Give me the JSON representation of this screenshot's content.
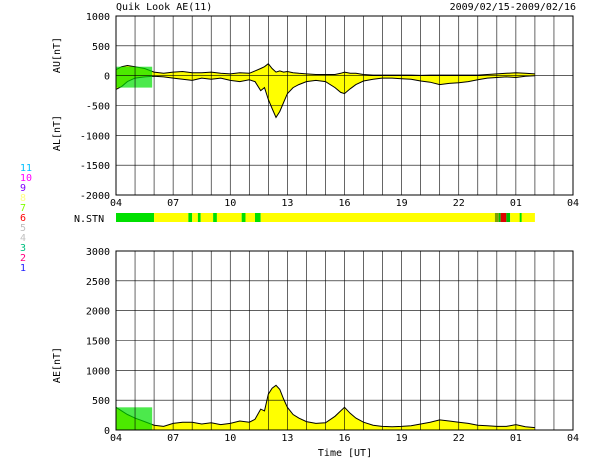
{
  "title": "Quik Look AE(11)",
  "date_range": "2009/02/15-2009/02/16",
  "xlabel": "Time [UT]",
  "x_ticks": [
    "04",
    "07",
    "10",
    "13",
    "16",
    "19",
    "22",
    "01",
    "04"
  ],
  "nstn_label": "N.STN",
  "legend": [
    {
      "label": "11",
      "color": "#00c0ff"
    },
    {
      "label": "10",
      "color": "#ff00ff"
    },
    {
      "label": "9",
      "color": "#8000ff"
    },
    {
      "label": "8",
      "color": "#ffff80"
    },
    {
      "label": "7",
      "color": "#80ff00"
    },
    {
      "label": "6",
      "color": "#ff0000"
    },
    {
      "label": "5",
      "color": "#c0c0c0"
    },
    {
      "label": "4",
      "color": "#c0c0c0"
    },
    {
      "label": "3",
      "color": "#00c080"
    },
    {
      "label": "2",
      "color": "#ff0080"
    },
    {
      "label": "1",
      "color": "#2020ff"
    }
  ],
  "chart_data": [
    {
      "type": "area",
      "name": "AU/AL",
      "ylabel_upper": "AU[nT]",
      "ylabel_lower": "AL[nT]",
      "y_ticks": [
        1000,
        500,
        0,
        -500,
        -1000,
        -1500,
        -2000
      ],
      "ylim": [
        -2000,
        1000
      ],
      "xlim_hours": [
        4,
        28
      ],
      "grid": true,
      "au": {
        "t": [
          4.0,
          4.3,
          4.6,
          5.0,
          5.5,
          6.0,
          6.5,
          7.0,
          7.5,
          8.0,
          8.5,
          9.0,
          9.5,
          10.0,
          10.5,
          11.0,
          11.3,
          11.6,
          11.8,
          12.0,
          12.2,
          12.4,
          12.6,
          12.8,
          13.0,
          13.3,
          13.6,
          14.0,
          14.5,
          15.0,
          15.5,
          15.8,
          16.0,
          16.3,
          16.6,
          17.0,
          17.5,
          18.0,
          18.5,
          19.0,
          19.5,
          20.0,
          20.5,
          21.0,
          21.5,
          22.0,
          22.5,
          23.0,
          23.5,
          24.0,
          24.5,
          25.0,
          25.5,
          26.0
        ],
        "v": [
          100,
          150,
          170,
          150,
          120,
          60,
          40,
          60,
          70,
          50,
          50,
          60,
          40,
          30,
          50,
          40,
          80,
          120,
          150,
          200,
          120,
          60,
          80,
          60,
          70,
          50,
          40,
          30,
          20,
          20,
          20,
          40,
          60,
          40,
          40,
          20,
          10,
          10,
          10,
          10,
          10,
          5,
          10,
          10,
          10,
          10,
          10,
          10,
          20,
          30,
          40,
          50,
          40,
          30
        ]
      },
      "al": {
        "t": [
          4.0,
          4.3,
          4.6,
          5.0,
          5.5,
          6.0,
          6.5,
          7.0,
          7.5,
          8.0,
          8.5,
          9.0,
          9.5,
          10.0,
          10.5,
          11.0,
          11.3,
          11.6,
          11.8,
          12.0,
          12.2,
          12.4,
          12.6,
          12.8,
          13.0,
          13.3,
          13.6,
          14.0,
          14.5,
          15.0,
          15.5,
          15.8,
          16.0,
          16.3,
          16.6,
          17.0,
          17.5,
          18.0,
          18.5,
          19.0,
          19.5,
          20.0,
          20.5,
          21.0,
          21.5,
          22.0,
          22.5,
          23.0,
          23.5,
          24.0,
          24.5,
          25.0,
          25.5,
          26.0
        ],
        "v": [
          -230,
          -180,
          -100,
          -40,
          -20,
          -10,
          -20,
          -40,
          -60,
          -80,
          -40,
          -60,
          -40,
          -80,
          -100,
          -70,
          -100,
          -250,
          -200,
          -400,
          -550,
          -700,
          -600,
          -450,
          -300,
          -200,
          -150,
          -100,
          -80,
          -100,
          -200,
          -280,
          -300,
          -220,
          -150,
          -90,
          -60,
          -40,
          -40,
          -50,
          -60,
          -90,
          -110,
          -150,
          -130,
          -120,
          -100,
          -70,
          -40,
          -30,
          -20,
          -30,
          -10,
          0
        ]
      }
    },
    {
      "type": "area",
      "name": "AE",
      "ylabel": "AE[nT]",
      "y_ticks": [
        3000,
        2500,
        2000,
        1500,
        1000,
        500,
        0
      ],
      "ylim": [
        0,
        3000
      ],
      "xlim_hours": [
        4,
        28
      ],
      "grid": true,
      "ae": {
        "t": [
          4.0,
          4.3,
          4.6,
          5.0,
          5.5,
          6.0,
          6.5,
          7.0,
          7.5,
          8.0,
          8.5,
          9.0,
          9.5,
          10.0,
          10.5,
          11.0,
          11.3,
          11.6,
          11.8,
          12.0,
          12.2,
          12.4,
          12.6,
          12.8,
          13.0,
          13.3,
          13.6,
          14.0,
          14.5,
          15.0,
          15.5,
          15.8,
          16.0,
          16.3,
          16.6,
          17.0,
          17.5,
          18.0,
          18.5,
          19.0,
          19.5,
          20.0,
          20.5,
          21.0,
          21.5,
          22.0,
          22.5,
          23.0,
          23.5,
          24.0,
          24.5,
          25.0,
          25.5,
          26.0
        ],
        "v": [
          380,
          320,
          260,
          200,
          140,
          80,
          60,
          110,
          130,
          130,
          100,
          120,
          90,
          110,
          150,
          130,
          180,
          350,
          320,
          600,
          700,
          750,
          680,
          520,
          380,
          260,
          200,
          140,
          110,
          120,
          230,
          320,
          380,
          280,
          200,
          130,
          80,
          60,
          55,
          60,
          70,
          100,
          130,
          170,
          150,
          130,
          110,
          80,
          70,
          60,
          60,
          90,
          55,
          40
        ]
      }
    }
  ],
  "station_count": {
    "label": "N.STN",
    "segments": [
      {
        "from": 4.0,
        "to": 6.0,
        "color": "#00e000"
      },
      {
        "from": 6.0,
        "to": 7.8,
        "color": "#ffff00"
      },
      {
        "from": 7.8,
        "to": 8.0,
        "color": "#00e000"
      },
      {
        "from": 8.0,
        "to": 8.3,
        "color": "#ffff00"
      },
      {
        "from": 8.3,
        "to": 8.45,
        "color": "#00e000"
      },
      {
        "from": 8.45,
        "to": 9.1,
        "color": "#ffff00"
      },
      {
        "from": 9.1,
        "to": 9.3,
        "color": "#00e000"
      },
      {
        "from": 9.3,
        "to": 10.6,
        "color": "#ffff00"
      },
      {
        "from": 10.6,
        "to": 10.8,
        "color": "#00e000"
      },
      {
        "from": 10.8,
        "to": 11.3,
        "color": "#ffff00"
      },
      {
        "from": 11.3,
        "to": 11.6,
        "color": "#00e000"
      },
      {
        "from": 11.6,
        "to": 23.9,
        "color": "#ffff00"
      },
      {
        "from": 23.9,
        "to": 24.1,
        "color": "#80a000"
      },
      {
        "from": 24.1,
        "to": 24.2,
        "color": "#00c000"
      },
      {
        "from": 24.2,
        "to": 24.5,
        "color": "#e00000"
      },
      {
        "from": 24.5,
        "to": 24.7,
        "color": "#00c000"
      },
      {
        "from": 24.7,
        "to": 26.0,
        "color": "#ffff00"
      },
      {
        "from": 25.2,
        "to": 25.3,
        "color": "#00e000"
      }
    ]
  }
}
